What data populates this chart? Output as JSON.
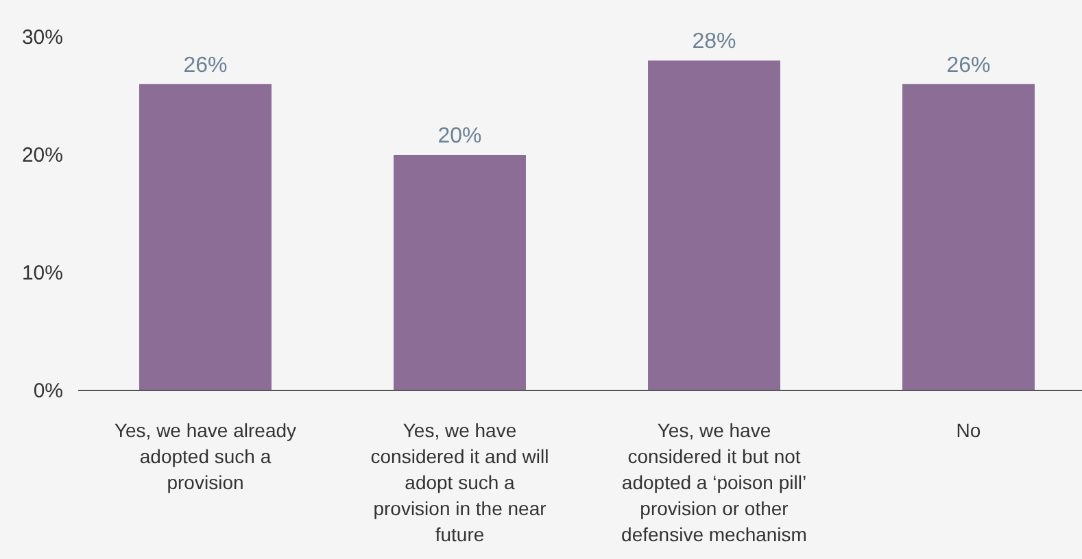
{
  "chart_data": {
    "type": "bar",
    "categories": [
      "Yes, we have already adopted such a provision",
      "Yes, we have considered it and will adopt such a provision in the near future",
      "Yes, we have considered it but not adopted a ‘poison pill’ provision or other defensive mechanism",
      "No"
    ],
    "values": [
      26,
      20,
      28,
      26
    ],
    "color": "#8b6d96",
    "value_labels": [
      "26%",
      "20%",
      "28%",
      "26%"
    ],
    "ylim": [
      0,
      30
    ],
    "yticks": [
      {
        "value": 0,
        "label": "0%"
      },
      {
        "value": 10,
        "label": "10%"
      },
      {
        "value": 20,
        "label": "20%"
      },
      {
        "value": 30,
        "label": "30%"
      }
    ],
    "grid": false
  }
}
